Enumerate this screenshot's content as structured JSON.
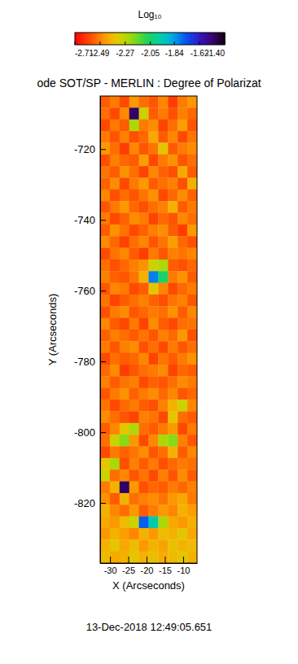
{
  "chart_data": {
    "type": "heatmap",
    "title": "ode SOT/SP - MERLIN : Degree of Polarizat",
    "x_label": "X (Arcseconds)",
    "y_label": "Y (Arcseconds)",
    "annotations": [
      "13-Dec-2018 12:49:05.651"
    ],
    "xlim": [
      -32.7,
      -6.2
    ],
    "ylim": [
      -837,
      -705
    ],
    "xticks": [
      -30,
      -25,
      -20,
      -15,
      -10
    ],
    "yticks": [
      -720,
      -740,
      -760,
      -780,
      -800,
      -820
    ],
    "x_edges": [
      -32.7,
      -30.05,
      -27.4,
      -24.75,
      -22.1,
      -19.45,
      -16.8,
      -14.15,
      -11.5,
      -8.85,
      -6.2
    ],
    "y_edges": [
      -705,
      -708.3,
      -711.6,
      -714.9,
      -718.2,
      -721.5,
      -724.8,
      -728.1,
      -731.4,
      -734.7,
      -738,
      -741.3,
      -744.6,
      -747.9,
      -751.2,
      -754.5,
      -757.8,
      -761.1,
      -764.4,
      -767.7,
      -771,
      -774.3,
      -777.6,
      -780.9,
      -784.2,
      -787.5,
      -790.8,
      -794.1,
      -797.4,
      -800.7,
      -804,
      -807.3,
      -810.6,
      -813.9,
      -817.2,
      -820.5,
      -823.8,
      -827.1,
      -830.4,
      -833.7,
      -837
    ],
    "values": [
      [
        -2.55,
        -2.5,
        -2.58,
        -2.45,
        -2.52,
        -2.56,
        -2.48,
        -2.6,
        -2.5,
        -2.45
      ],
      [
        -2.52,
        -2.58,
        -2.47,
        -1.5,
        -2.3,
        -2.55,
        -2.5,
        -2.57,
        -2.49,
        -2.53
      ],
      [
        -2.58,
        -2.5,
        -2.55,
        -2.25,
        -2.5,
        -2.47,
        -2.59,
        -2.52,
        -2.44,
        -2.56
      ],
      [
        -2.5,
        -2.56,
        -2.49,
        -2.57,
        -2.53,
        -2.42,
        -2.55,
        -2.48,
        -2.58,
        -2.51
      ],
      [
        -2.45,
        -2.52,
        -2.6,
        -2.48,
        -2.56,
        -2.51,
        -2.35,
        -2.55,
        -2.5,
        -2.47
      ],
      [
        -2.57,
        -2.49,
        -2.53,
        -2.55,
        -2.44,
        -2.58,
        -2.5,
        -2.46,
        -2.56,
        -2.52
      ],
      [
        -2.51,
        -2.55,
        -2.46,
        -2.52,
        -2.59,
        -2.48,
        -2.54,
        -2.57,
        -2.42,
        -2.55
      ],
      [
        -2.54,
        -2.47,
        -2.58,
        -2.5,
        -2.45,
        -2.55,
        -2.52,
        -2.49,
        -2.57,
        -2.4
      ],
      [
        -2.48,
        -2.57,
        -2.52,
        -2.56,
        -2.51,
        -2.46,
        -2.58,
        -2.53,
        -2.47,
        -2.54
      ],
      [
        -2.56,
        -2.5,
        -2.45,
        -2.53,
        -2.57,
        -2.52,
        -2.49,
        -2.4,
        -2.55,
        -2.5
      ],
      [
        -2.5,
        -2.58,
        -2.54,
        -2.47,
        -2.5,
        -2.59,
        -2.53,
        -2.56,
        -2.48,
        -2.52
      ],
      [
        -2.55,
        -2.46,
        -2.51,
        -2.58,
        -2.54,
        -2.49,
        -2.47,
        -2.55,
        -2.6,
        -2.45
      ],
      [
        -2.47,
        -2.53,
        -2.59,
        -2.52,
        -2.48,
        -2.56,
        -2.51,
        -2.44,
        -2.53,
        -2.57
      ],
      [
        -2.58,
        -2.51,
        -2.48,
        -2.55,
        -2.6,
        -2.5,
        -2.56,
        -2.49,
        -2.51,
        -2.48
      ],
      [
        -2.52,
        -2.57,
        -2.53,
        -2.49,
        -2.46,
        -2.3,
        -2.25,
        -2.55,
        -2.57,
        -2.53
      ],
      [
        -2.49,
        -2.54,
        -2.56,
        -2.51,
        -2.4,
        -1.8,
        -2.05,
        -2.5,
        -2.46,
        -2.55
      ],
      [
        -2.56,
        -2.48,
        -2.5,
        -2.58,
        -2.55,
        -2.35,
        -2.48,
        -2.58,
        -2.53,
        -2.5
      ],
      [
        -2.51,
        -2.59,
        -2.55,
        -2.52,
        -2.49,
        -2.54,
        -2.57,
        -2.51,
        -2.49,
        -2.56
      ],
      [
        -2.57,
        -2.5,
        -2.47,
        -2.56,
        -2.53,
        -2.5,
        -2.52,
        -2.46,
        -2.55,
        -2.48
      ],
      [
        -2.48,
        -2.55,
        -2.58,
        -2.5,
        -2.59,
        -2.47,
        -2.55,
        -2.58,
        -2.52,
        -2.51
      ],
      [
        -2.54,
        -2.49,
        -2.52,
        -2.55,
        -2.51,
        -2.56,
        -2.49,
        -2.53,
        -2.45,
        -2.57
      ],
      [
        -2.5,
        -2.56,
        -2.49,
        -2.47,
        -2.57,
        -2.52,
        -2.58,
        -2.5,
        -2.56,
        -2.52
      ],
      [
        -2.58,
        -2.52,
        -2.55,
        -2.53,
        -2.48,
        -2.59,
        -2.51,
        -2.55,
        -2.5,
        -2.46
      ],
      [
        -2.53,
        -2.47,
        -2.6,
        -2.56,
        -2.52,
        -2.5,
        -2.47,
        -2.59,
        -2.53,
        -2.55
      ],
      [
        -2.49,
        -2.55,
        -2.51,
        -2.49,
        -2.58,
        -2.54,
        -2.56,
        -2.52,
        -2.47,
        -2.5
      ],
      [
        -2.56,
        -2.5,
        -2.46,
        -2.54,
        -2.5,
        -2.47,
        -2.53,
        -2.48,
        -2.56,
        -2.53
      ],
      [
        -2.51,
        -2.58,
        -2.53,
        -2.5,
        -2.55,
        -2.57,
        -2.49,
        -2.4,
        -2.3,
        -2.48
      ],
      [
        -2.47,
        -2.52,
        -2.56,
        -2.59,
        -2.49,
        -2.51,
        -2.58,
        -2.35,
        -2.52,
        -2.55
      ],
      [
        -2.55,
        -2.48,
        -2.35,
        -2.25,
        -2.52,
        -2.55,
        -2.5,
        -2.45,
        -2.58,
        -2.5
      ],
      [
        -2.52,
        -2.3,
        -2.2,
        -2.45,
        -2.58,
        -2.48,
        -2.25,
        -2.2,
        -2.49,
        -2.56
      ],
      [
        -2.58,
        -2.5,
        -2.54,
        -2.51,
        -2.47,
        -2.56,
        -2.52,
        -2.4,
        -2.55,
        -2.48
      ],
      [
        -2.35,
        -2.25,
        -2.57,
        -2.49,
        -2.55,
        -2.5,
        -2.57,
        -2.53,
        -2.5,
        -2.52
      ],
      [
        -2.3,
        -2.52,
        -2.48,
        -2.56,
        -2.51,
        -2.58,
        -2.49,
        -2.56,
        -2.47,
        -2.55
      ],
      [
        -2.5,
        -2.4,
        -1.5,
        -2.45,
        -2.57,
        -2.53,
        -2.55,
        -2.5,
        -2.53,
        -2.49
      ],
      [
        -2.46,
        -2.55,
        -2.4,
        -2.52,
        -2.49,
        -2.47,
        -2.51,
        -2.45,
        -2.42,
        -2.5
      ],
      [
        -2.4,
        -2.48,
        -2.52,
        -2.45,
        -2.55,
        -2.5,
        -2.45,
        -2.48,
        -2.4,
        -2.44
      ],
      [
        -2.42,
        -2.45,
        -2.38,
        -2.3,
        -1.75,
        -1.95,
        -2.25,
        -2.42,
        -2.45,
        -2.4
      ],
      [
        -2.45,
        -2.4,
        -2.44,
        -2.48,
        -2.4,
        -2.45,
        -2.38,
        -2.4,
        -2.35,
        -2.42
      ],
      [
        -2.4,
        -2.35,
        -2.42,
        -2.38,
        -2.45,
        -2.4,
        -2.43,
        -2.36,
        -2.4,
        -2.38
      ],
      [
        -2.38,
        -2.42,
        -2.4,
        -2.35,
        -2.4,
        -2.37,
        -2.41,
        -2.38,
        -2.35,
        -2.4
      ]
    ],
    "colorbar": {
      "title": "Log₁₀",
      "range": [
        -2.71,
        -1.4
      ],
      "ticks": [
        -2.71,
        -2.49,
        -2.27,
        -2.05,
        -1.84,
        -1.62,
        {
          "value": -1.4,
          "label": "-1.40"
        }
      ]
    }
  }
}
